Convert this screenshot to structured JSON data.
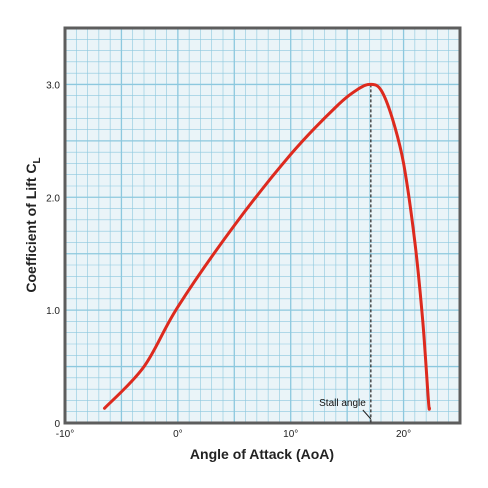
{
  "chart_data": {
    "type": "line",
    "title": "",
    "xlabel": "Angle of Attack (AoA)",
    "ylabel": "Coefficient of Lift C",
    "ylabel_subscript": "L",
    "xlim": [
      -10,
      25
    ],
    "ylim": [
      0,
      3.5
    ],
    "grid": true,
    "x_ticks": [
      -10,
      0,
      10,
      20
    ],
    "x_tick_labels": [
      "-10°",
      "0°",
      "10°",
      "20°"
    ],
    "y_ticks": [
      0,
      1.0,
      2.0,
      3.0
    ],
    "y_tick_labels": [
      "0",
      "1.0",
      "2.0",
      "3.0"
    ],
    "series": [
      {
        "color": "#dd2a1e",
        "points": [
          [
            -6.5,
            0.13
          ],
          [
            -3.0,
            0.5
          ],
          [
            0.0,
            1.03
          ],
          [
            5.0,
            1.75
          ],
          [
            10.0,
            2.38
          ],
          [
            14.0,
            2.8
          ],
          [
            16.0,
            2.96
          ],
          [
            17.1,
            3.0
          ],
          [
            18.0,
            2.95
          ],
          [
            19.0,
            2.7
          ],
          [
            20.0,
            2.3
          ],
          [
            21.0,
            1.6
          ],
          [
            21.7,
            0.9
          ],
          [
            22.2,
            0.2
          ],
          [
            22.3,
            0.13
          ]
        ]
      }
    ],
    "annotations": [
      {
        "text": "Stall angle",
        "x": 17.1,
        "ymin": 0,
        "ymax": 3.0,
        "style": "dashed vertical line"
      }
    ],
    "colors": {
      "grid": "#8cc8de",
      "background": "#eaf4f8",
      "frame": "#5d5d5d"
    }
  }
}
